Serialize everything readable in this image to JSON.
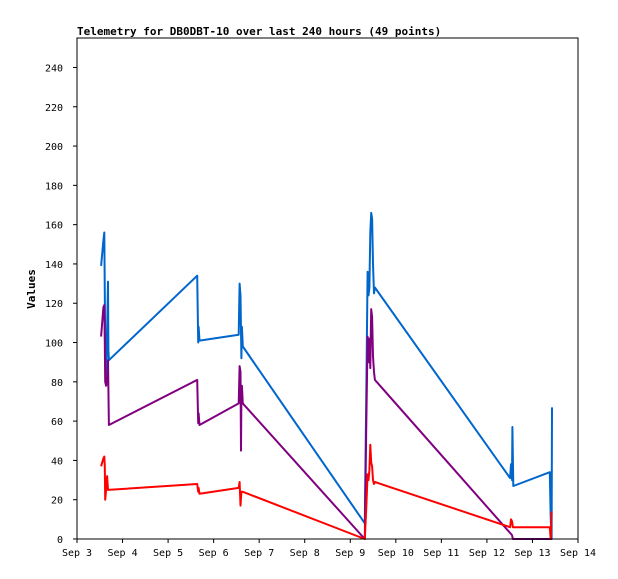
{
  "chart_data": {
    "type": "line",
    "title": "Telemetry for DB0DBT-10 over last 240 hours (49 points)",
    "xlabel": "",
    "ylabel": "Values",
    "x_unit": "days (September)",
    "xlim": [
      3.0,
      14.0
    ],
    "ylim": [
      0,
      255
    ],
    "x_ticks": [
      {
        "value": 3,
        "label": "Sep 3"
      },
      {
        "value": 4,
        "label": "Sep 4"
      },
      {
        "value": 5,
        "label": "Sep 5"
      },
      {
        "value": 6,
        "label": "Sep 6"
      },
      {
        "value": 7,
        "label": "Sep 7"
      },
      {
        "value": 8,
        "label": "Sep 8"
      },
      {
        "value": 9,
        "label": "Sep 9"
      },
      {
        "value": 10,
        "label": "Sep 10"
      },
      {
        "value": 11,
        "label": "Sep 11"
      },
      {
        "value": 12,
        "label": "Sep 12"
      },
      {
        "value": 13,
        "label": "Sep 13"
      },
      {
        "value": 14,
        "label": "Sep 14"
      }
    ],
    "y_ticks": [
      0,
      20,
      40,
      60,
      80,
      100,
      120,
      140,
      160,
      180,
      200,
      220,
      240
    ],
    "grid": false,
    "legend": "none",
    "series": [
      {
        "color": "#0066cc",
        "points": [
          [
            3.53,
            139
          ],
          [
            3.58,
            152
          ],
          [
            3.6,
            156
          ],
          [
            3.61,
            125
          ],
          [
            3.62,
            98
          ],
          [
            3.64,
            80
          ],
          [
            3.66,
            105
          ],
          [
            3.68,
            131
          ],
          [
            3.69,
            96
          ],
          [
            3.7,
            91
          ],
          [
            5.64,
            134
          ],
          [
            5.66,
            100
          ],
          [
            5.67,
            108
          ],
          [
            5.69,
            101
          ],
          [
            6.55,
            104
          ],
          [
            6.57,
            130
          ],
          [
            6.59,
            124
          ],
          [
            6.61,
            92
          ],
          [
            6.62,
            108
          ],
          [
            6.64,
            98
          ],
          [
            9.32,
            8
          ],
          [
            9.35,
            70
          ],
          [
            9.38,
            136
          ],
          [
            9.4,
            124
          ],
          [
            9.42,
            128
          ],
          [
            9.44,
            156
          ],
          [
            9.46,
            166
          ],
          [
            9.48,
            163
          ],
          [
            9.5,
            140
          ],
          [
            9.52,
            125
          ],
          [
            9.54,
            128
          ],
          [
            12.51,
            31
          ],
          [
            12.53,
            38
          ],
          [
            12.55,
            30
          ],
          [
            12.56,
            57
          ],
          [
            12.58,
            27
          ],
          [
            13.38,
            34
          ],
          [
            13.4,
            11
          ],
          [
            13.42,
            0
          ],
          [
            13.43,
            67
          ]
        ]
      },
      {
        "color": "#800080",
        "points": [
          [
            3.53,
            103
          ],
          [
            3.58,
            118
          ],
          [
            3.6,
            119
          ],
          [
            3.61,
            100
          ],
          [
            3.62,
            80
          ],
          [
            3.64,
            78
          ],
          [
            3.66,
            80
          ],
          [
            3.68,
            91
          ],
          [
            3.7,
            58
          ],
          [
            5.64,
            81
          ],
          [
            5.66,
            59
          ],
          [
            5.67,
            64
          ],
          [
            5.69,
            58
          ],
          [
            6.55,
            69
          ],
          [
            6.57,
            88
          ],
          [
            6.59,
            85
          ],
          [
            6.6,
            45
          ],
          [
            6.61,
            72
          ],
          [
            6.62,
            78
          ],
          [
            6.64,
            69
          ],
          [
            9.32,
            0
          ],
          [
            9.35,
            55
          ],
          [
            9.38,
            103
          ],
          [
            9.4,
            90
          ],
          [
            9.42,
            102
          ],
          [
            9.44,
            87
          ],
          [
            9.46,
            117
          ],
          [
            9.48,
            113
          ],
          [
            9.5,
            93
          ],
          [
            9.52,
            85
          ],
          [
            9.54,
            81
          ],
          [
            12.55,
            2
          ],
          [
            12.57,
            0
          ],
          [
            13.38,
            0
          ],
          [
            13.4,
            0
          ],
          [
            13.43,
            0
          ]
        ]
      },
      {
        "color": "#ff0000",
        "points": [
          [
            3.53,
            37
          ],
          [
            3.58,
            41
          ],
          [
            3.6,
            42
          ],
          [
            3.61,
            37
          ],
          [
            3.62,
            20
          ],
          [
            3.64,
            25
          ],
          [
            3.66,
            32
          ],
          [
            3.68,
            25
          ],
          [
            5.64,
            28
          ],
          [
            5.66,
            24
          ],
          [
            5.67,
            26
          ],
          [
            5.69,
            23
          ],
          [
            6.55,
            26
          ],
          [
            6.57,
            29
          ],
          [
            6.59,
            17
          ],
          [
            6.61,
            24
          ],
          [
            6.64,
            24
          ],
          [
            9.32,
            0
          ],
          [
            9.35,
            15
          ],
          [
            9.38,
            33
          ],
          [
            9.4,
            30
          ],
          [
            9.42,
            35
          ],
          [
            9.44,
            48
          ],
          [
            9.46,
            39
          ],
          [
            9.48,
            37
          ],
          [
            9.5,
            30
          ],
          [
            9.52,
            28
          ],
          [
            9.54,
            29
          ],
          [
            12.51,
            6
          ],
          [
            12.53,
            10
          ],
          [
            12.55,
            9
          ],
          [
            12.57,
            6
          ],
          [
            13.38,
            6
          ],
          [
            13.4,
            0
          ],
          [
            13.42,
            14
          ]
        ]
      },
      {
        "color": "#000000",
        "points": [
          [
            3.0,
            0
          ],
          [
            14.0,
            0
          ]
        ]
      }
    ]
  }
}
